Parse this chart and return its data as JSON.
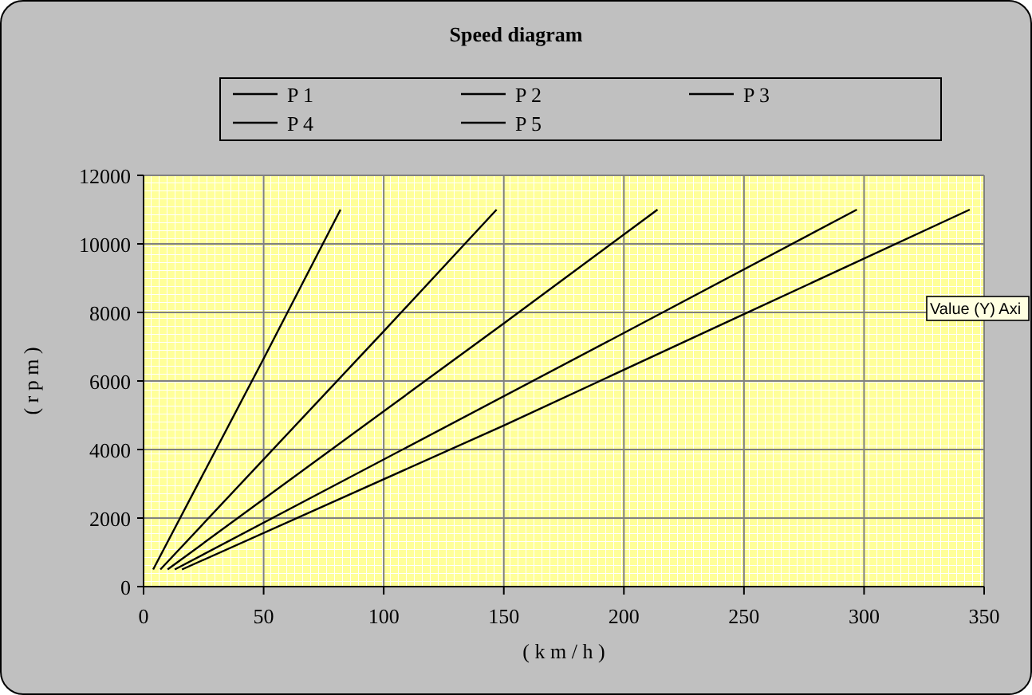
{
  "chart_data": {
    "type": "line",
    "title": "Speed diagram",
    "xlabel": "( k m / h )",
    "ylabel": "( r p m )",
    "xlim": [
      0,
      350
    ],
    "xticks": [
      0,
      50,
      100,
      150,
      200,
      250,
      300,
      350
    ],
    "ylim": [
      0,
      12000
    ],
    "yticks": [
      0,
      2000,
      4000,
      6000,
      8000,
      10000,
      12000
    ],
    "grid": true,
    "legend": "top",
    "marker": "none",
    "line_style": "solid",
    "annotations": [
      "Value (Y) Axi"
    ],
    "series": [
      {
        "name": "P 1",
        "color": "#000000",
        "x": [
          4,
          50,
          82
        ],
        "values": [
          500,
          6650,
          11000
        ]
      },
      {
        "name": "P 2",
        "color": "#000000",
        "x": [
          7,
          100,
          147
        ],
        "values": [
          500,
          7450,
          11000
        ]
      },
      {
        "name": "P 3",
        "color": "#000000",
        "x": [
          10,
          150,
          214
        ],
        "values": [
          500,
          7680,
          11000
        ]
      },
      {
        "name": "P 4",
        "color": "#000000",
        "x": [
          13,
          200,
          297
        ],
        "values": [
          500,
          7400,
          11000
        ]
      },
      {
        "name": "P 5",
        "color": "#000000",
        "x": [
          16,
          150,
          250,
          344
        ],
        "values": [
          500,
          4700,
          7950,
          11000
        ]
      }
    ]
  }
}
